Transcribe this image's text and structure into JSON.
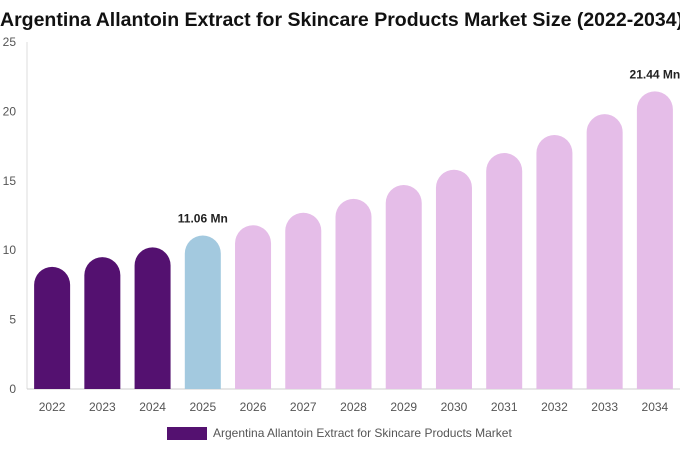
{
  "chart_data": {
    "type": "bar",
    "title": "Argentina Allantoin Extract for Skincare Products Market Size (2022-2034)",
    "categories": [
      "2022",
      "2023",
      "2024",
      "2025",
      "2026",
      "2027",
      "2028",
      "2029",
      "2030",
      "2031",
      "2032",
      "2033",
      "2034"
    ],
    "series": [
      {
        "name": "Argentina Allantoin Extract for Skincare Products Market",
        "values": [
          8.8,
          9.5,
          10.2,
          11.06,
          11.8,
          12.7,
          13.7,
          14.7,
          15.8,
          17.0,
          18.3,
          19.8,
          21.44
        ]
      }
    ],
    "ylim": [
      0,
      25
    ],
    "yticks": [
      0,
      5,
      10,
      15,
      20,
      25
    ],
    "xlabel": "",
    "ylabel": "",
    "annotations": [
      {
        "category": "2025",
        "text": "11.06 Mn"
      },
      {
        "category": "2034",
        "text": "21.44 Mn"
      }
    ],
    "colors": {
      "historical": "#541170",
      "base_year": "#a3c9df",
      "forecast": "#e5bde8"
    },
    "grid": false,
    "legend_position": "bottom"
  }
}
